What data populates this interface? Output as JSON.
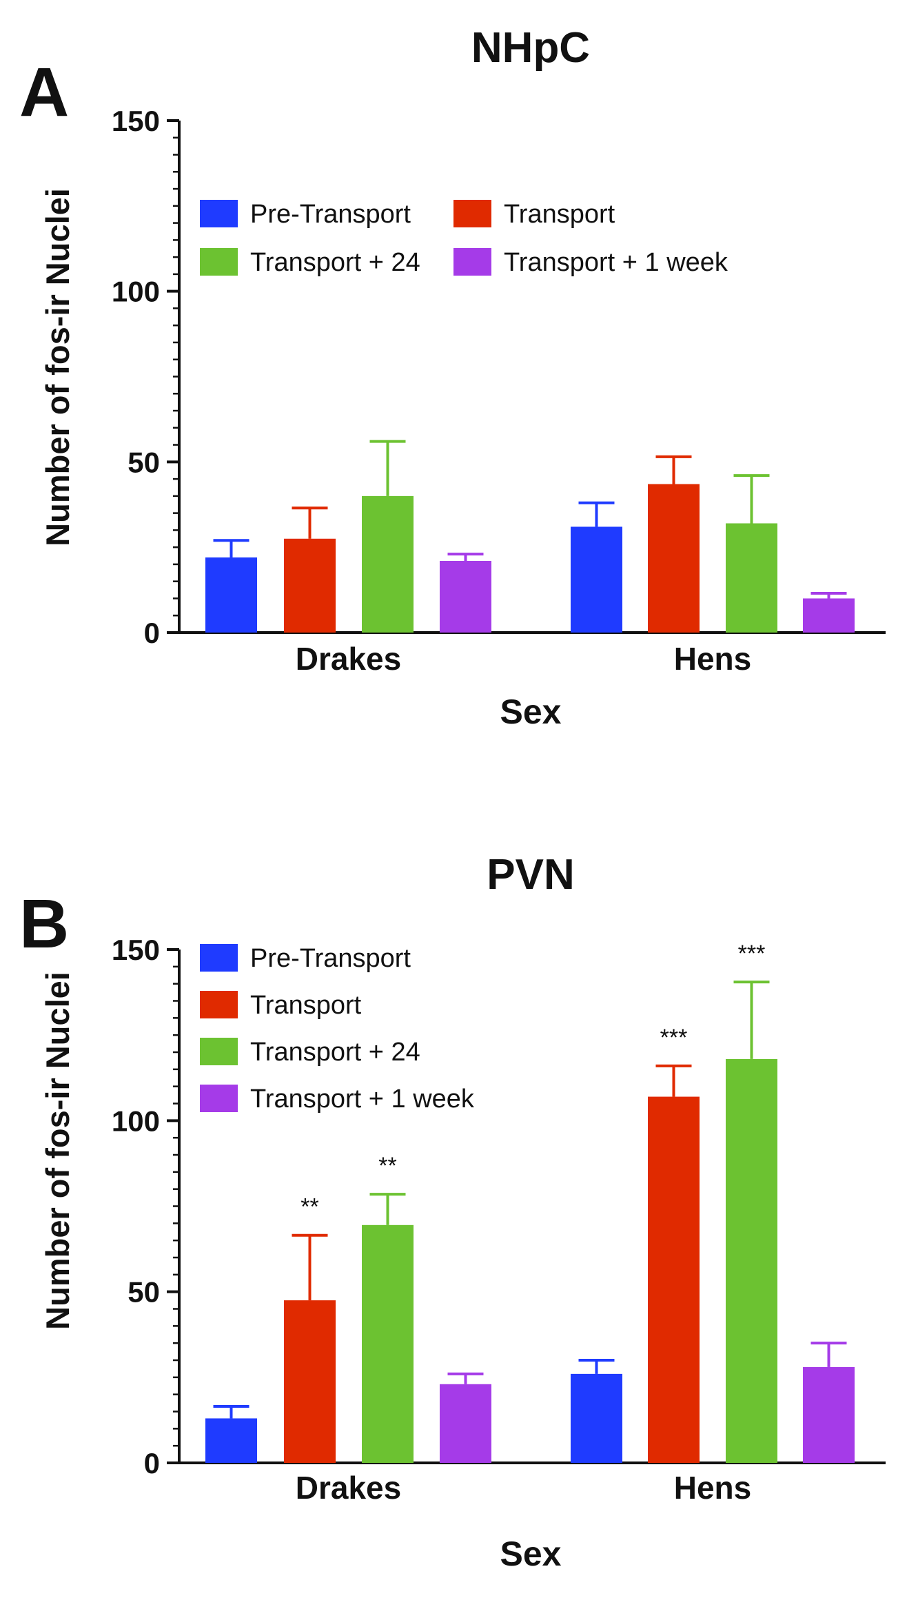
{
  "chart_data": [
    {
      "panel": "A",
      "type": "bar",
      "title": "NHpC",
      "xlabel": "Sex",
      "ylabel": "Number of fos-ir Nuclei",
      "ylim": [
        0,
        150
      ],
      "yticks": [
        0,
        50,
        100,
        150
      ],
      "categories": [
        "Drakes",
        "Hens"
      ],
      "legend_position": "top-left",
      "series": [
        {
          "name": "Pre-Transport",
          "color": "#1f3bff",
          "values": [
            22,
            31
          ],
          "errors": [
            5,
            7
          ]
        },
        {
          "name": "Transport",
          "color": "#e02a00",
          "values": [
            27.5,
            43.5
          ],
          "errors": [
            9,
            8
          ]
        },
        {
          "name": "Transport + 24",
          "color": "#6cc231",
          "values": [
            40,
            32
          ],
          "errors": [
            16,
            14
          ]
        },
        {
          "name": "Transport + 1 week",
          "color": "#a53be8",
          "values": [
            21,
            10
          ],
          "errors": [
            2,
            1.5
          ]
        }
      ],
      "annotations": []
    },
    {
      "panel": "B",
      "type": "bar",
      "title": "PVN",
      "xlabel": "Sex",
      "ylabel": "Number of fos-ir Nuclei",
      "ylim": [
        0,
        150
      ],
      "yticks": [
        0,
        50,
        100,
        150
      ],
      "categories": [
        "Drakes",
        "Hens"
      ],
      "legend_position": "top-left",
      "series": [
        {
          "name": "Pre-Transport",
          "color": "#1f3bff",
          "values": [
            13,
            26
          ],
          "errors": [
            3.5,
            4
          ]
        },
        {
          "name": "Transport",
          "color": "#e02a00",
          "values": [
            47.5,
            107
          ],
          "errors": [
            19,
            9
          ]
        },
        {
          "name": "Transport + 24",
          "color": "#6cc231",
          "values": [
            69.5,
            118
          ],
          "errors": [
            9,
            22.5
          ]
        },
        {
          "name": "Transport + 1 week",
          "color": "#a53be8",
          "values": [
            23,
            28
          ],
          "errors": [
            3,
            7
          ]
        }
      ],
      "annotations": [
        {
          "series": 1,
          "category": 0,
          "text": "**"
        },
        {
          "series": 2,
          "category": 0,
          "text": "**"
        },
        {
          "series": 1,
          "category": 1,
          "text": "***"
        },
        {
          "series": 2,
          "category": 1,
          "text": "***"
        }
      ]
    }
  ]
}
